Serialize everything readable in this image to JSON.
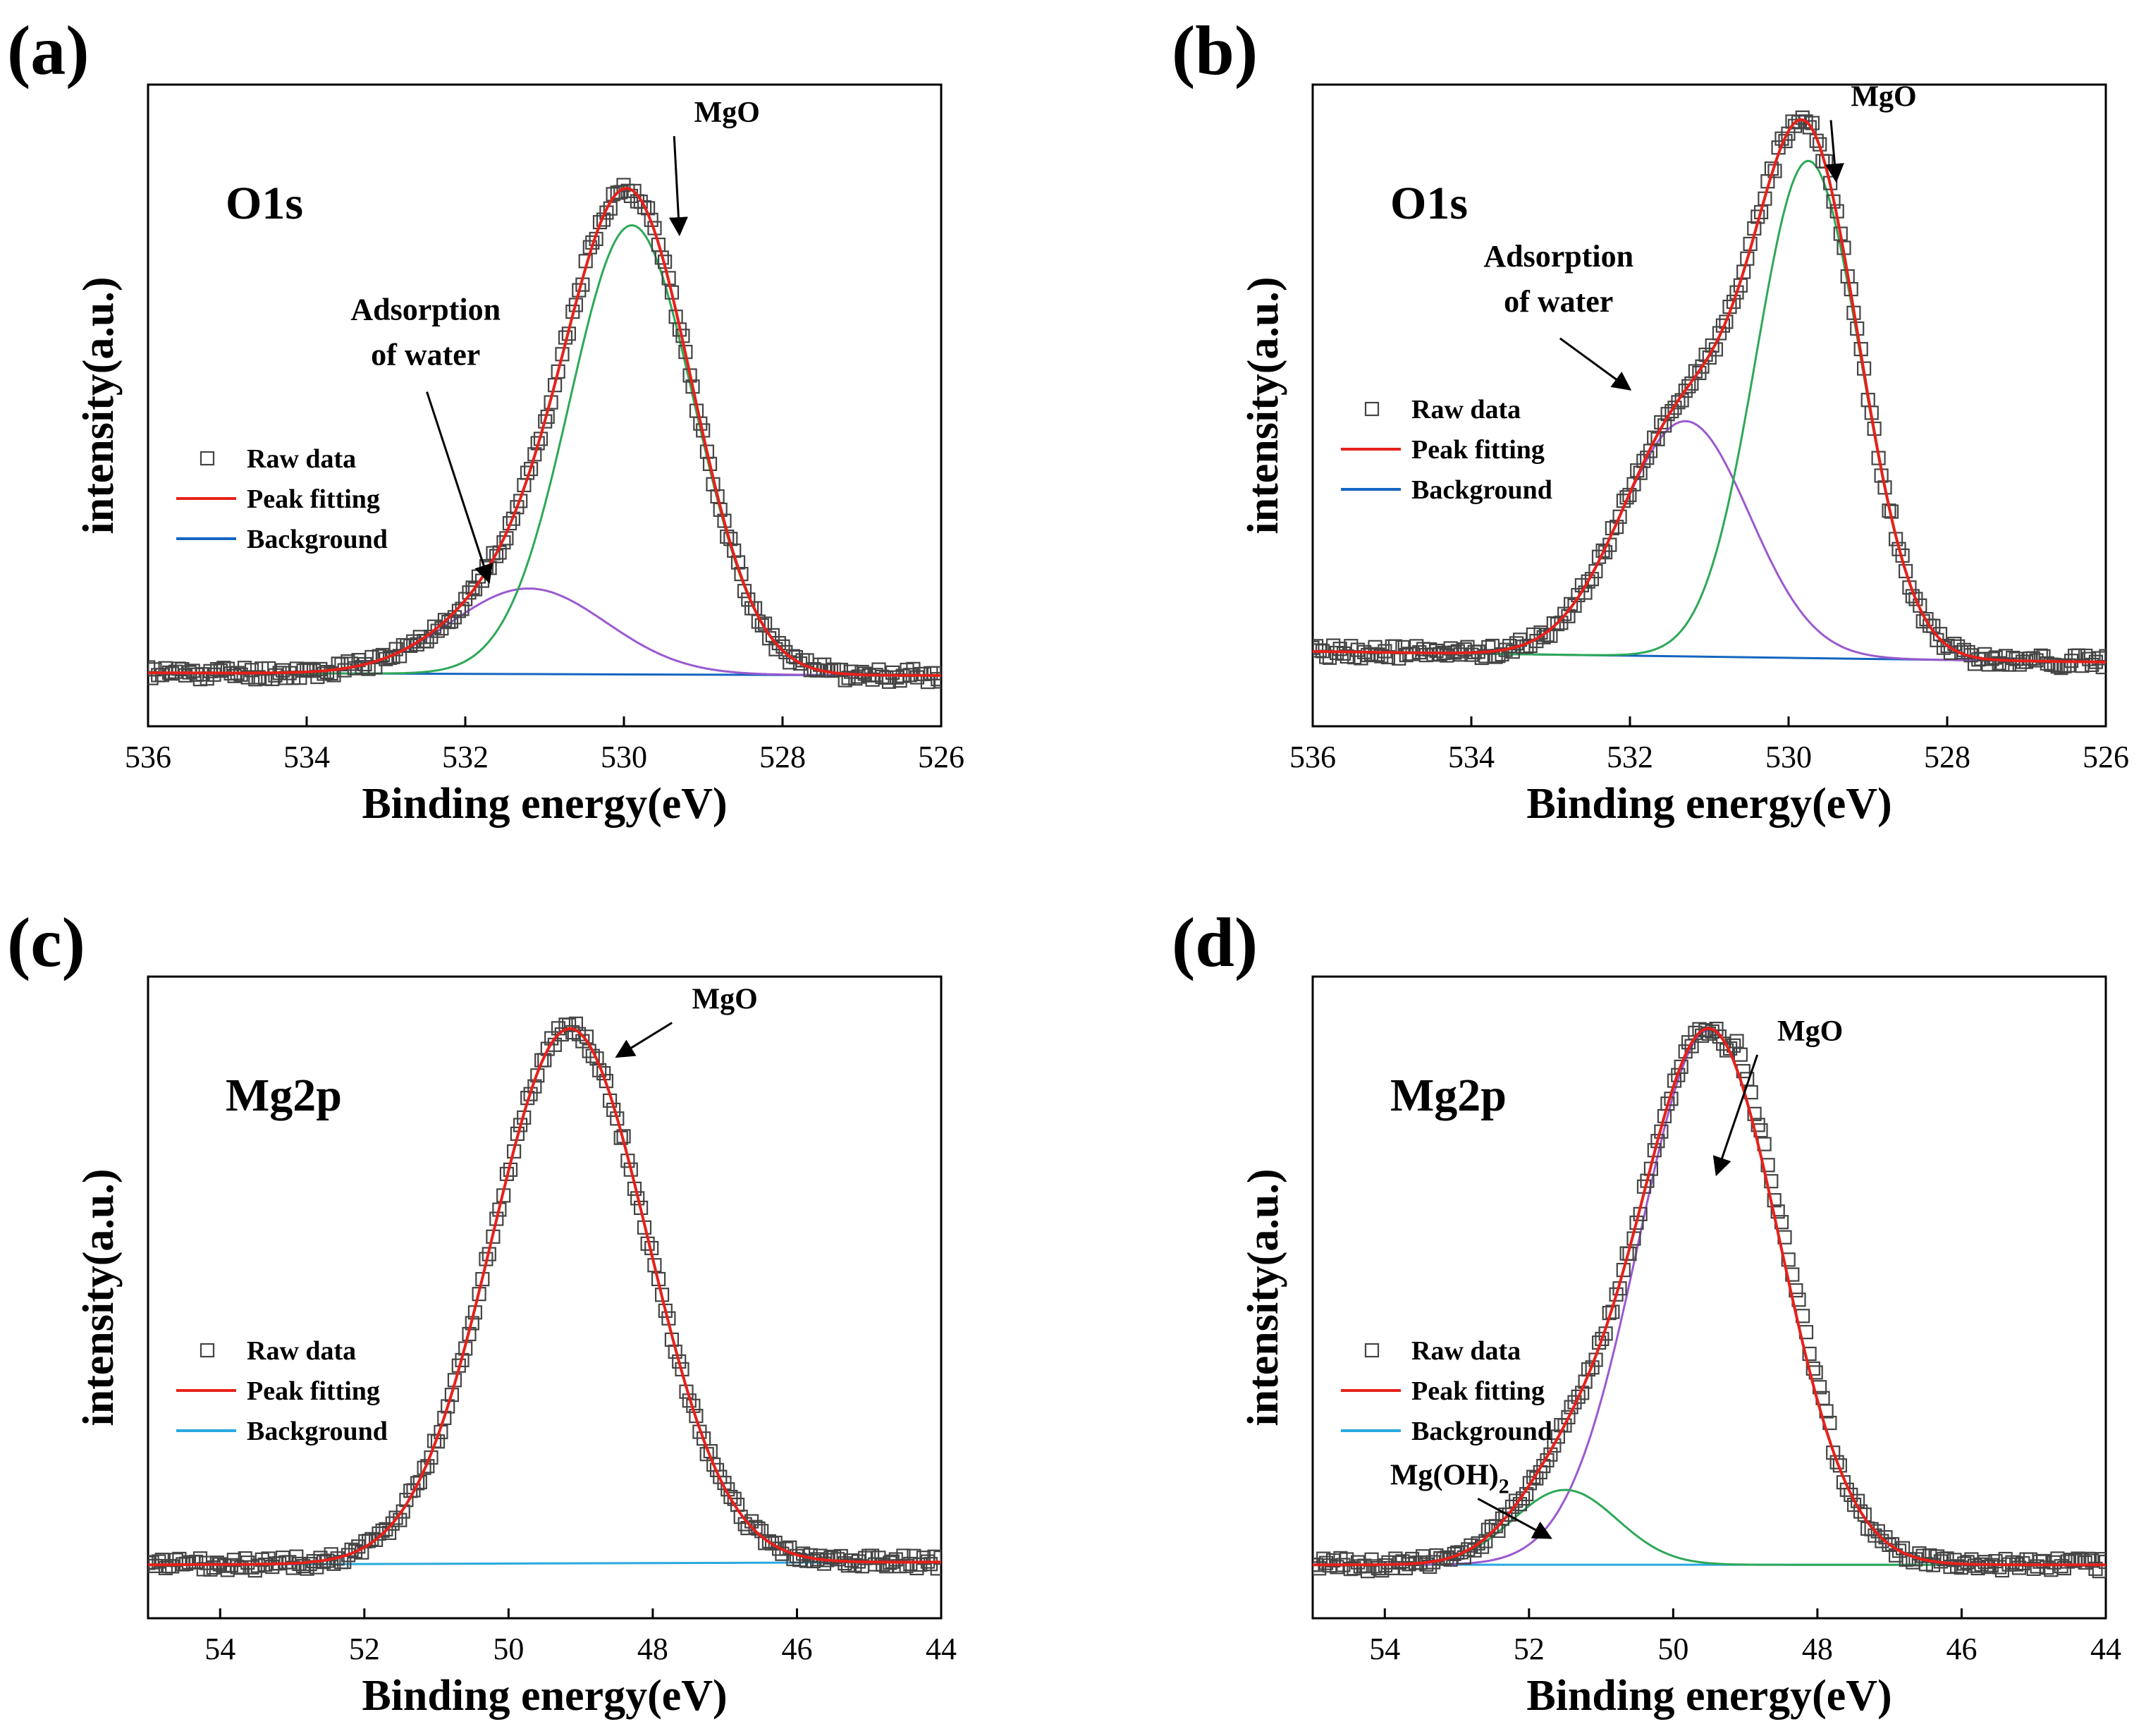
{
  "figure": {
    "panels": [
      "(a)",
      "(b)",
      "(c)",
      "(d)"
    ]
  },
  "chart_data": [
    {
      "id": "a",
      "type": "line",
      "panel_label": "(a)",
      "title": "O1s",
      "xlabel": "Binding energy(eV)",
      "ylabel": "intensity(a.u.)",
      "xlim": [
        536,
        526
      ],
      "xticks": [
        536,
        534,
        532,
        530,
        528,
        526
      ],
      "ylim": [
        -0.1,
        1.1
      ],
      "legend_position": "middle-left",
      "legend": [
        "Raw data",
        "Peak fitting",
        "Background"
      ],
      "colors": {
        "raw": "#444444",
        "fit": "#e8201a",
        "background": "#1565c0",
        "comp1": "#9b59d0",
        "comp2": "#2ea858"
      },
      "peaks": [
        {
          "name": "Adsorption of water",
          "center": 531.2,
          "height": 0.16,
          "fwhm": 2.3,
          "color": "#9b59d0"
        },
        {
          "name": "MgO",
          "center": 529.9,
          "height": 0.84,
          "fwhm": 1.85,
          "color": "#2ea858"
        }
      ],
      "background": {
        "start": 0.0,
        "end": -0.005
      },
      "annotations": [
        {
          "text": "MgO",
          "text_at": [
            528.7,
            1.03
          ],
          "arrow_to": [
            529.3,
            0.82
          ]
        },
        {
          "lines": [
            "Adsorption",
            "of water"
          ],
          "text_at": [
            532.5,
            0.66
          ],
          "arrow_to": [
            531.7,
            0.17
          ]
        }
      ]
    },
    {
      "id": "b",
      "type": "line",
      "panel_label": "(b)",
      "title": "O1s",
      "xlabel": "Binding energy(eV)",
      "ylabel": "intensity(a.u.)",
      "xlim": [
        536,
        526
      ],
      "xticks": [
        536,
        534,
        532,
        530,
        528,
        526
      ],
      "ylim": [
        -0.1,
        1.1
      ],
      "legend_position": "middle-left",
      "legend": [
        "Raw data",
        "Peak fitting",
        "Background"
      ],
      "colors": {
        "raw": "#444444",
        "fit": "#e8201a",
        "background": "#1565c0",
        "comp1": "#9b59d0",
        "comp2": "#2ea858"
      },
      "peaks": [
        {
          "name": "Adsorption of water",
          "center": 531.3,
          "height": 0.44,
          "fwhm": 1.9,
          "color": "#9b59d0"
        },
        {
          "name": "MgO",
          "center": 529.75,
          "height": 0.93,
          "fwhm": 1.55,
          "color": "#2ea858"
        }
      ],
      "background": {
        "start": 0.04,
        "end": 0.02
      },
      "annotations": [
        {
          "text": "MgO",
          "text_at": [
            528.8,
            1.06
          ],
          "arrow_to": [
            529.4,
            0.92
          ]
        },
        {
          "lines": [
            "Adsorption",
            "of water"
          ],
          "text_at": [
            532.9,
            0.76
          ],
          "arrow_to": [
            532.0,
            0.53
          ]
        }
      ]
    },
    {
      "id": "c",
      "type": "line",
      "panel_label": "(c)",
      "title": "Mg2p",
      "xlabel": "Binding energy(eV)",
      "ylabel": "intensity(a.u.)",
      "xlim": [
        55,
        44
      ],
      "xticks": [
        54,
        52,
        50,
        48,
        46,
        44
      ],
      "ylim": [
        -0.1,
        1.1
      ],
      "legend_position": "middle-left",
      "legend": [
        "Raw data",
        "Peak fitting",
        "Background"
      ],
      "colors": {
        "raw": "#444444",
        "fit": "#e8201a",
        "background": "#29a9e0"
      },
      "peaks": [
        {
          "name": "MgO",
          "center": 49.15,
          "height": 1.0,
          "fwhm": 2.55,
          "color": "#e8201a"
        }
      ],
      "background": {
        "start": 0.0,
        "end": 0.005
      },
      "annotations": [
        {
          "text": "MgO",
          "text_at": [
            47.0,
            1.04
          ],
          "arrow_to": [
            48.5,
            0.95
          ]
        }
      ]
    },
    {
      "id": "d",
      "type": "line",
      "panel_label": "(d)",
      "title": "Mg2p",
      "xlabel": "Binding energy(eV)",
      "ylabel": "intensity(a.u.)",
      "xlim": [
        55,
        44
      ],
      "xticks": [
        54,
        52,
        50,
        48,
        46,
        44
      ],
      "ylim": [
        -0.1,
        1.1
      ],
      "legend_position": "middle-left",
      "legend": [
        "Raw data",
        "Peak fitting",
        "Background"
      ],
      "colors": {
        "raw": "#444444",
        "fit": "#e8201a",
        "background": "#29a9e0",
        "comp1": "#9b59d0",
        "comp2": "#2ea858"
      },
      "peaks": [
        {
          "name": "MgO",
          "center": 49.5,
          "height": 1.0,
          "fwhm": 2.3,
          "color": "#9b59d0"
        },
        {
          "name": "Mg(OH)2",
          "center": 51.5,
          "height": 0.14,
          "fwhm": 1.7,
          "color": "#2ea858"
        }
      ],
      "background": {
        "start": 0.0,
        "end": 0.0
      },
      "annotations": [
        {
          "text": "MgO",
          "text_at": [
            48.1,
            0.98
          ],
          "arrow_to": [
            49.4,
            0.73
          ]
        },
        {
          "text": "Mg(OH)",
          "subscript": "2",
          "text_at": [
            53.1,
            0.15
          ],
          "arrow_to": [
            51.7,
            0.05
          ]
        }
      ]
    }
  ]
}
